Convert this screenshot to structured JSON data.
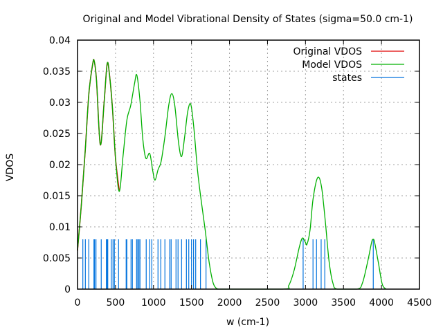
{
  "chart_data": {
    "type": "line",
    "title": "Original and Model Vibrational Density of States (sigma=50.0 cm-1)",
    "xlabel": "w (cm-1)",
    "ylabel": "VDOS",
    "xlim": [
      0,
      4500
    ],
    "ylim": [
      0,
      0.04
    ],
    "xticks": [
      0,
      500,
      1000,
      1500,
      2000,
      2500,
      3000,
      3500,
      4000,
      4500
    ],
    "xtick_labels": [
      "0",
      "500",
      "1000",
      "1500",
      "2000",
      "2500",
      "3000",
      "3500",
      "4000",
      "4500"
    ],
    "yticks": [
      0,
      0.005,
      0.01,
      0.015,
      0.02,
      0.025,
      0.03,
      0.035,
      0.04
    ],
    "ytick_labels": [
      "0",
      "0.005",
      "0.01",
      "0.015",
      "0.02",
      "0.025",
      "0.03",
      "0.035",
      "0.04"
    ],
    "grid": true,
    "legend_position": "top-right",
    "series": [
      {
        "name": "Original VDOS",
        "color": "#e00000",
        "x": [
          0,
          50,
          100,
          150,
          200,
          220,
          250,
          300,
          350,
          390,
          420,
          460,
          500,
          550
        ],
        "y": [
          0.0062,
          0.0135,
          0.022,
          0.0315,
          0.0362,
          0.0366,
          0.0335,
          0.0232,
          0.03,
          0.0362,
          0.0345,
          0.029,
          0.021,
          0.0157
        ]
      },
      {
        "name": "Model VDOS",
        "color": "#00b000",
        "x": [
          0,
          50,
          100,
          150,
          200,
          220,
          250,
          300,
          350,
          390,
          420,
          460,
          500,
          550,
          600,
          650,
          700,
          750,
          780,
          820,
          860,
          900,
          950,
          990,
          1020,
          1060,
          1100,
          1150,
          1200,
          1240,
          1280,
          1330,
          1370,
          1410,
          1450,
          1490,
          1530,
          1580,
          1630,
          1680,
          1730,
          1780,
          1820,
          1860,
          1900,
          2700,
          2780,
          2850,
          2920,
          2960,
          3000,
          3020,
          3060,
          3100,
          3160,
          3210,
          3260,
          3310,
          3360,
          3420,
          3680,
          3750,
          3820,
          3870,
          3890,
          3910,
          3960,
          4010,
          4060
        ],
        "y": [
          0.0062,
          0.0135,
          0.022,
          0.0315,
          0.0362,
          0.0366,
          0.0335,
          0.0232,
          0.03,
          0.0362,
          0.0345,
          0.029,
          0.021,
          0.0157,
          0.0215,
          0.0272,
          0.0295,
          0.033,
          0.0344,
          0.0305,
          0.024,
          0.021,
          0.0218,
          0.019,
          0.0175,
          0.0192,
          0.0205,
          0.0245,
          0.0295,
          0.0314,
          0.0295,
          0.0235,
          0.0213,
          0.0245,
          0.0285,
          0.0297,
          0.026,
          0.019,
          0.014,
          0.0095,
          0.0045,
          0.0012,
          0.0002,
          0.0,
          0.0,
          0.0,
          0.0006,
          0.003,
          0.0068,
          0.0082,
          0.0075,
          0.0072,
          0.0095,
          0.0145,
          0.0179,
          0.0165,
          0.011,
          0.0045,
          0.001,
          0.0,
          0.0,
          0.001,
          0.0045,
          0.0075,
          0.008,
          0.0075,
          0.0042,
          0.0008,
          0.0
        ]
      },
      {
        "name": "states",
        "color": "#0072dd",
        "type": "impulse",
        "height": 0.008,
        "x": [
          70,
          103,
          148,
          216,
          225,
          243,
          312,
          380,
          389,
          398,
          444,
          467,
          485,
          540,
          640,
          649,
          704,
          722,
          777,
          792,
          808,
          822,
          904,
          950,
          977,
          1059,
          1096,
          1150,
          1214,
          1232,
          1296,
          1323,
          1369,
          1433,
          1464,
          1500,
          1527,
          1555,
          1618,
          1691,
          2969,
          3099,
          3145,
          3206,
          3254,
          3892
        ]
      }
    ]
  }
}
